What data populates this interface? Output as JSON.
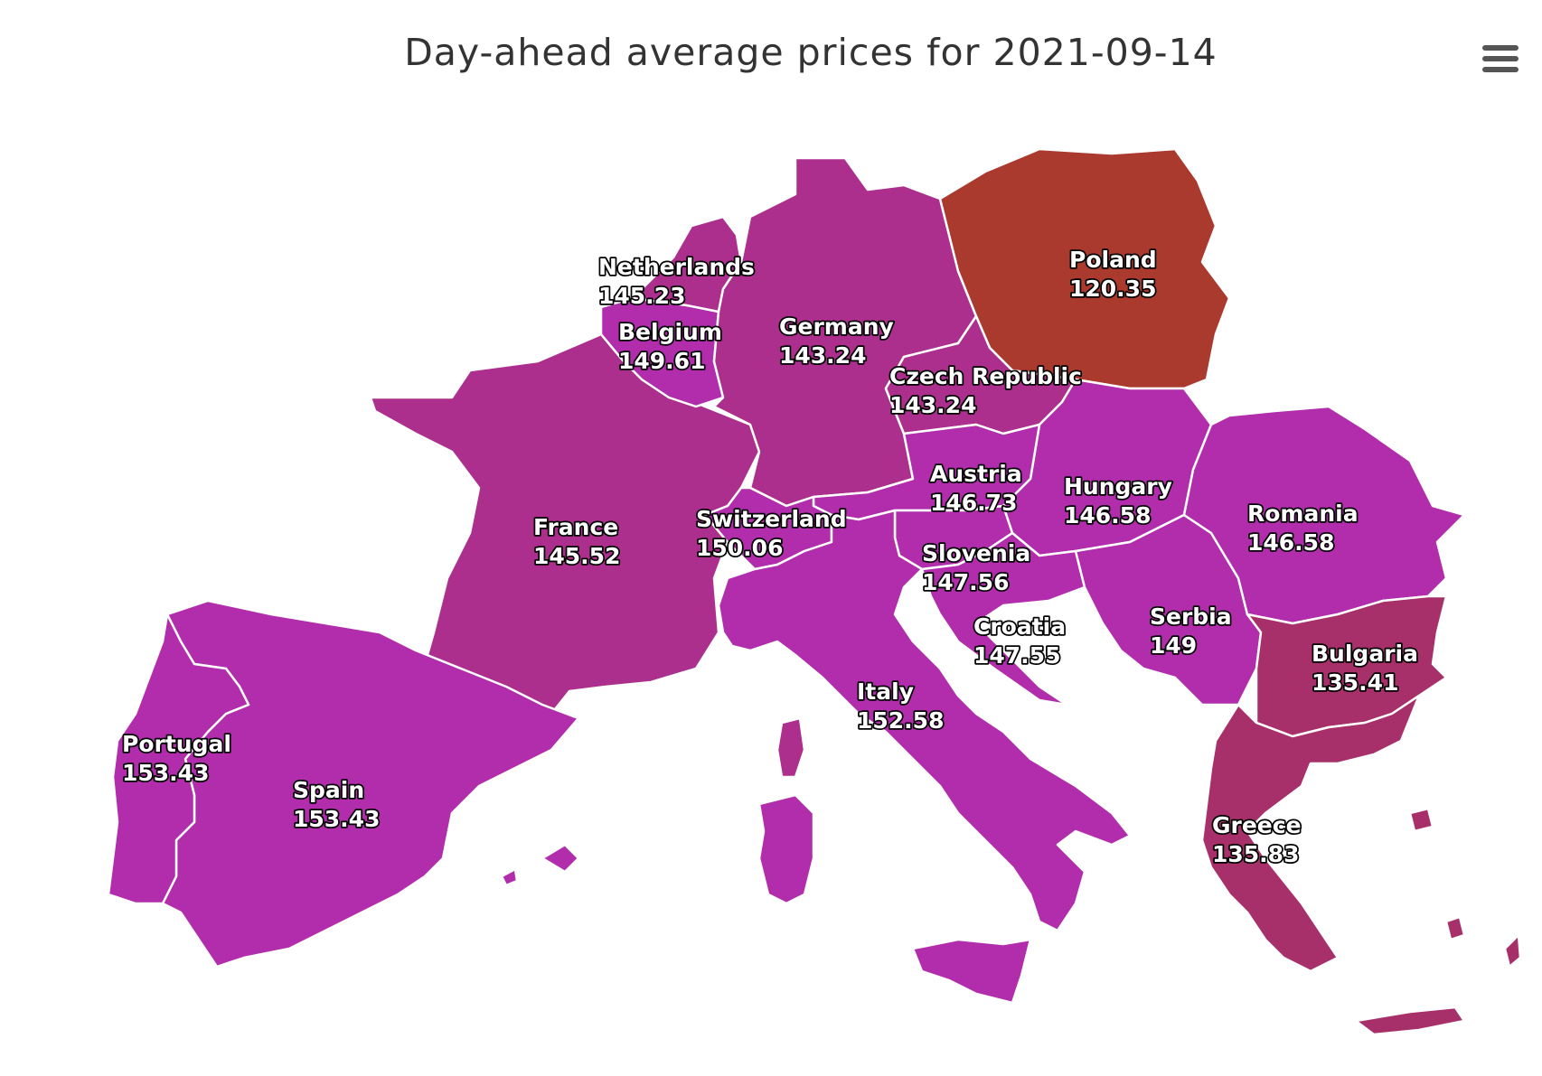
{
  "title": "Day-ahead average prices for 2021-09-14",
  "menu": {
    "icon": "hamburger-menu-icon"
  },
  "colors": {
    "low": "#ab3a2e",
    "mid_low": "#a8306a",
    "mid": "#ac2f8e",
    "high": "#b12dac",
    "background": "#ffffff",
    "border": "#ffffff"
  },
  "regions": [
    {
      "name": "Poland",
      "value": "120.35"
    },
    {
      "name": "Bulgaria",
      "value": "135.41"
    },
    {
      "name": "Greece",
      "value": "135.83"
    },
    {
      "name": "Germany",
      "value": "143.24"
    },
    {
      "name": "Czech Republic",
      "value": "143.24"
    },
    {
      "name": "Netherlands",
      "value": "145.23"
    },
    {
      "name": "France",
      "value": "145.52"
    },
    {
      "name": "Hungary",
      "value": "146.58"
    },
    {
      "name": "Romania",
      "value": "146.58"
    },
    {
      "name": "Austria",
      "value": "146.73"
    },
    {
      "name": "Croatia",
      "value": "147.55"
    },
    {
      "name": "Slovenia",
      "value": "147.56"
    },
    {
      "name": "Serbia",
      "value": "149"
    },
    {
      "name": "Belgium",
      "value": "149.61"
    },
    {
      "name": "Switzerland",
      "value": "150.06"
    },
    {
      "name": "Italy",
      "value": "152.58"
    },
    {
      "name": "Portugal",
      "value": "153.43"
    },
    {
      "name": "Spain",
      "value": "153.43"
    }
  ]
}
